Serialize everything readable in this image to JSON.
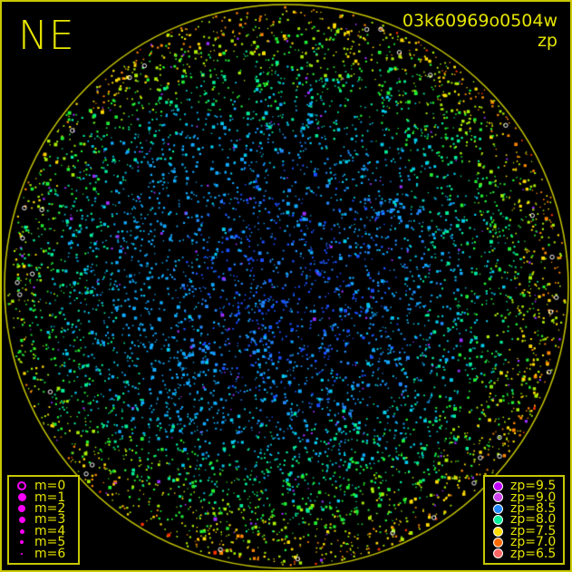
{
  "header": {
    "direction": "NE",
    "frame_id": "03k60969o0504w",
    "mode": "zp"
  },
  "colors": {
    "horizon_circle": "#c8c800",
    "text": "#e6e600",
    "magnitude_marker": "#ff00ff"
  },
  "magnitude_legend": [
    {
      "label": "m=0",
      "hollow": true
    },
    {
      "label": "m=1"
    },
    {
      "label": "m=2"
    },
    {
      "label": "m=3"
    },
    {
      "label": "m=4"
    },
    {
      "label": "m=5"
    },
    {
      "label": "m=6"
    }
  ],
  "zp_legend": [
    {
      "label": "zp=9.5",
      "color": "#c000ff"
    },
    {
      "label": "zp=9.0",
      "color": "#cc44ee"
    },
    {
      "label": "zp=8.5",
      "color": "#2288ff"
    },
    {
      "label": "zp=8.0",
      "color": "#00ee99"
    },
    {
      "label": "zp=7.5",
      "color": "#ffdd00"
    },
    {
      "label": "zp=7.0",
      "color": "#ff6a00"
    },
    {
      "label": "zp=6.5",
      "color": "#ff6666"
    }
  ]
}
